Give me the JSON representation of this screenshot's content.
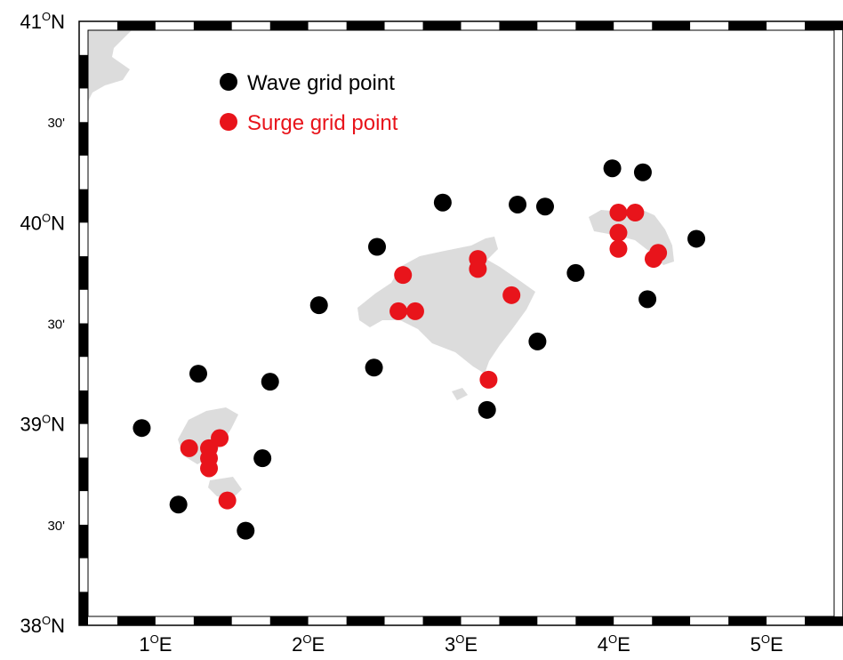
{
  "map": {
    "extent": {
      "lon_min": 0.5,
      "lon_max": 5.5,
      "lat_min": 38.0,
      "lat_max": 41.0
    },
    "frame_colors": {
      "dark": "#000000",
      "light": "#ffffff"
    },
    "land_color": "#dcdcdc",
    "lat_labels": [
      {
        "lat": 41.0,
        "main": "41",
        "sup": "O",
        "suffix": "N",
        "kind": "major"
      },
      {
        "lat": 40.5,
        "main": "30'",
        "sup": "",
        "suffix": "",
        "kind": "minor"
      },
      {
        "lat": 40.0,
        "main": "40",
        "sup": "O",
        "suffix": "N",
        "kind": "major"
      },
      {
        "lat": 39.5,
        "main": "30'",
        "sup": "",
        "suffix": "",
        "kind": "minor"
      },
      {
        "lat": 39.0,
        "main": "39",
        "sup": "O",
        "suffix": "N",
        "kind": "major"
      },
      {
        "lat": 38.5,
        "main": "30'",
        "sup": "",
        "suffix": "",
        "kind": "minor"
      },
      {
        "lat": 38.0,
        "main": "38",
        "sup": "O",
        "suffix": "N",
        "kind": "major"
      }
    ],
    "lon_labels": [
      {
        "lon": 1.0,
        "main": "1",
        "sup": "O",
        "suffix": "E"
      },
      {
        "lon": 2.0,
        "main": "2",
        "sup": "O",
        "suffix": "E"
      },
      {
        "lon": 3.0,
        "main": "3",
        "sup": "O",
        "suffix": "E"
      },
      {
        "lon": 4.0,
        "main": "4",
        "sup": "O",
        "suffix": "E"
      },
      {
        "lon": 5.0,
        "main": "5",
        "sup": "O",
        "suffix": "E"
      }
    ],
    "legend": {
      "wave_label": "Wave grid point",
      "surge_label": "Surge grid point",
      "wave_color": "#000000",
      "surge_color": "#e8141b"
    },
    "wave_points": [
      [
        0.91,
        38.98
      ],
      [
        1.28,
        39.25
      ],
      [
        1.75,
        39.21
      ],
      [
        1.15,
        38.6
      ],
      [
        1.7,
        38.83
      ],
      [
        1.59,
        38.47
      ],
      [
        2.07,
        39.59
      ],
      [
        2.45,
        39.88
      ],
      [
        2.43,
        39.28
      ],
      [
        2.88,
        40.1
      ],
      [
        3.37,
        40.09
      ],
      [
        3.55,
        40.08
      ],
      [
        3.75,
        39.75
      ],
      [
        3.5,
        39.41
      ],
      [
        3.17,
        39.07
      ],
      [
        3.99,
        40.27
      ],
      [
        4.19,
        40.25
      ],
      [
        4.54,
        39.92
      ],
      [
        4.22,
        39.62
      ]
    ],
    "surge_points": [
      [
        1.22,
        38.88
      ],
      [
        1.35,
        38.88
      ],
      [
        1.42,
        38.93
      ],
      [
        1.35,
        38.83
      ],
      [
        1.35,
        38.78
      ],
      [
        1.47,
        38.62
      ],
      [
        2.62,
        39.74
      ],
      [
        2.59,
        39.56
      ],
      [
        2.7,
        39.56
      ],
      [
        3.11,
        39.82
      ],
      [
        3.11,
        39.77
      ],
      [
        3.33,
        39.64
      ],
      [
        3.18,
        39.22
      ],
      [
        4.03,
        40.05
      ],
      [
        4.14,
        40.05
      ],
      [
        4.03,
        39.95
      ],
      [
        4.03,
        39.87
      ],
      [
        4.29,
        39.85
      ],
      [
        4.26,
        39.82
      ]
    ]
  }
}
